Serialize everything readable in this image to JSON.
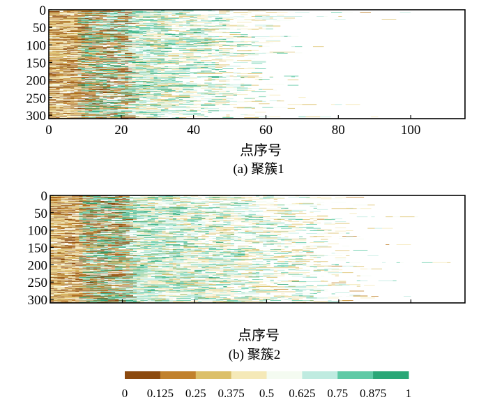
{
  "chart_data": [
    {
      "type": "heatmap",
      "panel": "a",
      "caption": "(a) 聚簇1",
      "xlabel": "点序号",
      "ylabel": "",
      "xlim": [
        0,
        115
      ],
      "ylim": [
        0,
        310
      ],
      "x_ticks": [
        0,
        20,
        40,
        60,
        80,
        100
      ],
      "x_tick_labels": [
        "0",
        "20",
        "40",
        "60",
        "80",
        "100"
      ],
      "y_ticks": [
        0,
        50,
        100,
        150,
        200,
        250,
        300
      ],
      "y_tick_labels": [
        "0",
        "50",
        "100",
        "150",
        "200",
        "250",
        "300"
      ],
      "rows": 310,
      "typical_sequence_length_range": [
        25,
        70
      ],
      "max_sequence_length": 115,
      "value_range": [
        0,
        1
      ],
      "pattern": "values skew low (brown) for early points and high (green) near index 10-20; most rows end before point 70"
    },
    {
      "type": "heatmap",
      "panel": "b",
      "caption": "(b) 聚簇2",
      "xlabel": "点序号",
      "ylabel": "",
      "xlim": [
        0,
        115
      ],
      "ylim": [
        0,
        310
      ],
      "x_ticks": [
        0,
        20,
        40,
        60,
        80,
        100
      ],
      "x_tick_labels": [
        "",
        "",
        "",
        "",
        "",
        ""
      ],
      "y_ticks": [
        0,
        50,
        100,
        150,
        200,
        250,
        300
      ],
      "y_tick_labels": [
        "0",
        "50",
        "100",
        "150",
        "200",
        "250",
        "300"
      ],
      "rows": 310,
      "typical_sequence_length_range": [
        40,
        90
      ],
      "max_sequence_length": 115,
      "value_range": [
        0,
        1
      ],
      "pattern": "dense brown values in first ~15 points, mixed green values through 20-50; most rows end before point 80"
    }
  ],
  "colorbar": {
    "bins": [
      0,
      0.125,
      0.25,
      0.375,
      0.5,
      0.625,
      0.75,
      0.875,
      1
    ],
    "labels": [
      "0",
      "0.125",
      "0.25",
      "0.375",
      "0.5",
      "0.625",
      "0.75",
      "0.875",
      "1"
    ],
    "colors": [
      "#8c4a0f",
      "#c1812c",
      "#dcc06a",
      "#f5e9b8",
      "#f4fbf1",
      "#bfebe0",
      "#5fcaa6",
      "#2aa777",
      "#0e7245"
    ]
  }
}
